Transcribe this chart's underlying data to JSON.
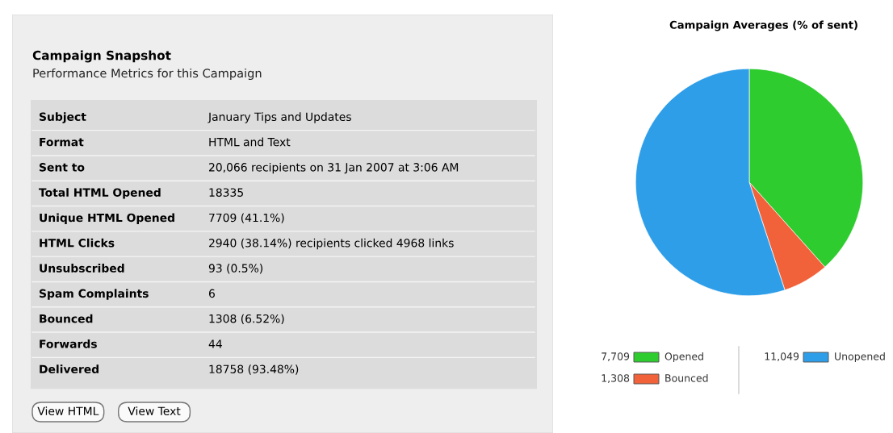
{
  "chart_data": [
    {
      "type": "other",
      "title": "Campaign Snapshot",
      "subtitle": "Performance Metrics for this Campaign",
      "categories": [
        "Subject",
        "Format",
        "Sent to",
        "Total HTML Opened",
        "Unique HTML Opened",
        "HTML Clicks",
        "Unsubscribed",
        "Spam Complaints",
        "Bounced",
        "Forwards",
        "Delivered"
      ],
      "annotations": [
        "January Tips and Updates",
        "HTML and Text",
        "20,066 recipients on 31 Jan 2007 at 3:06 AM",
        "18335",
        "7709 (41.1%)",
        "2940 (38.14%) recipients clicked 4968 links",
        "93 (0.5%)",
        "6",
        "1308 (6.52%)",
        "44",
        "18758 (93.48%)",
        "View HTML",
        "View Text"
      ]
    },
    {
      "type": "pie",
      "title": "Campaign Averages (% of sent)",
      "categories": [
        "Opened",
        "Bounced",
        "Unopened"
      ],
      "values": [
        7709,
        1308,
        11049
      ],
      "value_labels": [
        "7,709",
        "1,308",
        "11,049"
      ],
      "colors": [
        "#2ecc2e",
        "#f2623a",
        "#2f9ee8"
      ],
      "legend": "bottom"
    }
  ]
}
